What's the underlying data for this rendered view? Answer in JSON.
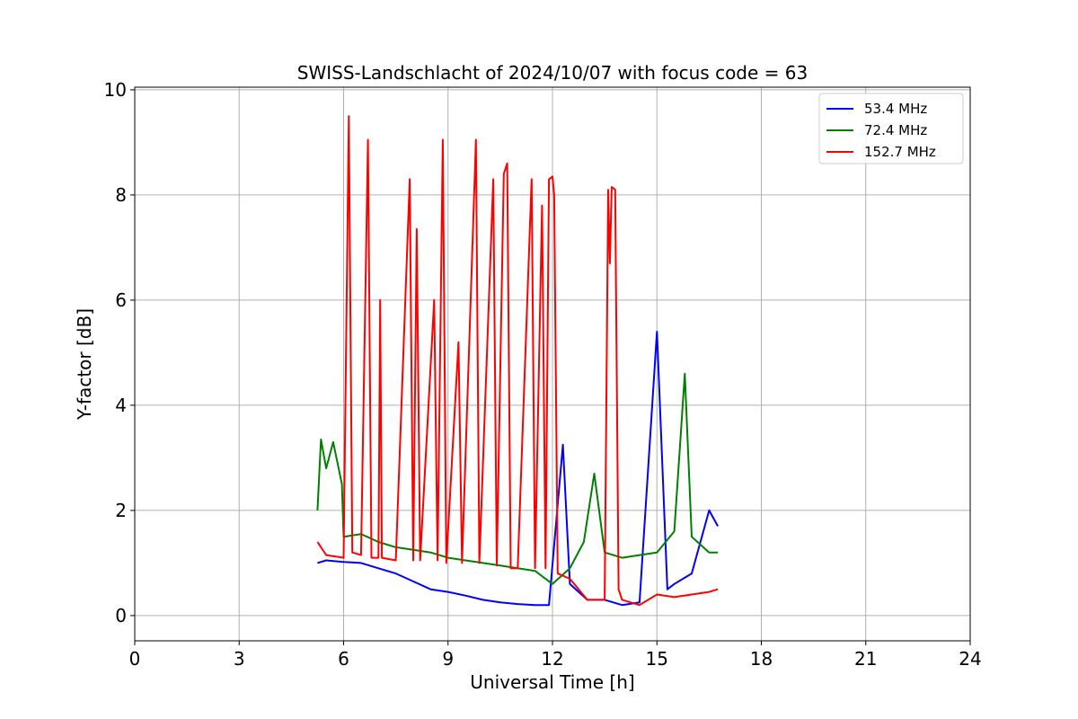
{
  "chart_data": {
    "type": "line",
    "title": "SWISS-Landschlacht of 2024/10/07 with focus code = 63",
    "xlabel": "Universal Time [h]",
    "ylabel": "Y-factor [dB]",
    "xlim": [
      0,
      24
    ],
    "ylim": [
      -0.48,
      10.05
    ],
    "xticks": [
      0,
      3,
      6,
      9,
      12,
      15,
      18,
      21,
      24
    ],
    "yticks": [
      0,
      2,
      4,
      6,
      8,
      10
    ],
    "grid": true,
    "legend_position": "top-right",
    "series": [
      {
        "name": "  53.4 MHz",
        "color": "#0000ff",
        "points": [
          [
            5.25,
            1.0
          ],
          [
            5.5,
            1.05
          ],
          [
            6.0,
            1.02
          ],
          [
            6.5,
            1.0
          ],
          [
            7.0,
            0.9
          ],
          [
            7.5,
            0.8
          ],
          [
            8.0,
            0.65
          ],
          [
            8.5,
            0.5
          ],
          [
            9.0,
            0.45
          ],
          [
            9.5,
            0.38
          ],
          [
            10.0,
            0.3
          ],
          [
            10.5,
            0.25
          ],
          [
            11.0,
            0.22
          ],
          [
            11.5,
            0.2
          ],
          [
            11.9,
            0.2
          ],
          [
            12.3,
            3.25
          ],
          [
            12.5,
            0.6
          ],
          [
            13.0,
            0.3
          ],
          [
            13.5,
            0.3
          ],
          [
            14.0,
            0.2
          ],
          [
            14.5,
            0.25
          ],
          [
            15.0,
            5.4
          ],
          [
            15.3,
            0.5
          ],
          [
            15.5,
            0.6
          ],
          [
            16.0,
            0.8
          ],
          [
            16.5,
            2.0
          ],
          [
            16.75,
            1.7
          ]
        ]
      },
      {
        "name": "  72.4 MHz",
        "color": "#008000",
        "points": [
          [
            5.25,
            2.0
          ],
          [
            5.35,
            3.35
          ],
          [
            5.5,
            2.8
          ],
          [
            5.7,
            3.3
          ],
          [
            5.95,
            2.5
          ],
          [
            6.0,
            1.5
          ],
          [
            6.5,
            1.55
          ],
          [
            7.0,
            1.4
          ],
          [
            7.5,
            1.3
          ],
          [
            8.0,
            1.25
          ],
          [
            8.5,
            1.2
          ],
          [
            9.0,
            1.1
          ],
          [
            9.5,
            1.05
          ],
          [
            10.0,
            1.0
          ],
          [
            10.5,
            0.95
          ],
          [
            11.0,
            0.9
          ],
          [
            11.5,
            0.85
          ],
          [
            12.0,
            0.6
          ],
          [
            12.5,
            0.9
          ],
          [
            12.9,
            1.4
          ],
          [
            13.2,
            2.7
          ],
          [
            13.5,
            1.2
          ],
          [
            14.0,
            1.1
          ],
          [
            14.5,
            1.15
          ],
          [
            15.0,
            1.2
          ],
          [
            15.5,
            1.6
          ],
          [
            15.8,
            4.6
          ],
          [
            16.0,
            1.5
          ],
          [
            16.5,
            1.2
          ],
          [
            16.75,
            1.2
          ]
        ]
      },
      {
        "name": "152.7 MHz",
        "color": "#ff0000",
        "points": [
          [
            5.25,
            1.4
          ],
          [
            5.5,
            1.15
          ],
          [
            6.0,
            1.1
          ],
          [
            6.15,
            9.5
          ],
          [
            6.25,
            1.2
          ],
          [
            6.5,
            1.15
          ],
          [
            6.7,
            9.05
          ],
          [
            6.8,
            1.1
          ],
          [
            7.0,
            1.1
          ],
          [
            7.05,
            6.0
          ],
          [
            7.1,
            1.1
          ],
          [
            7.5,
            1.05
          ],
          [
            7.9,
            8.3
          ],
          [
            8.0,
            1.05
          ],
          [
            8.1,
            7.35
          ],
          [
            8.2,
            1.05
          ],
          [
            8.6,
            6.0
          ],
          [
            8.7,
            1.05
          ],
          [
            8.85,
            9.05
          ],
          [
            8.95,
            1.0
          ],
          [
            9.3,
            5.2
          ],
          [
            9.4,
            1.0
          ],
          [
            9.8,
            9.05
          ],
          [
            9.9,
            1.0
          ],
          [
            10.3,
            8.3
          ],
          [
            10.4,
            0.95
          ],
          [
            10.6,
            8.4
          ],
          [
            10.7,
            8.6
          ],
          [
            10.8,
            0.9
          ],
          [
            11.0,
            0.9
          ],
          [
            11.4,
            8.3
          ],
          [
            11.5,
            0.9
          ],
          [
            11.7,
            7.8
          ],
          [
            11.8,
            0.9
          ],
          [
            11.9,
            8.3
          ],
          [
            12.0,
            8.35
          ],
          [
            12.05,
            8.0
          ],
          [
            12.15,
            0.8
          ],
          [
            12.5,
            0.7
          ],
          [
            13.0,
            0.3
          ],
          [
            13.5,
            0.3
          ],
          [
            13.6,
            8.1
          ],
          [
            13.65,
            6.7
          ],
          [
            13.7,
            8.15
          ],
          [
            13.8,
            8.1
          ],
          [
            13.9,
            0.5
          ],
          [
            14.0,
            0.3
          ],
          [
            14.5,
            0.2
          ],
          [
            15.0,
            0.4
          ],
          [
            15.5,
            0.35
          ],
          [
            16.0,
            0.4
          ],
          [
            16.5,
            0.45
          ],
          [
            16.75,
            0.5
          ]
        ]
      }
    ]
  }
}
